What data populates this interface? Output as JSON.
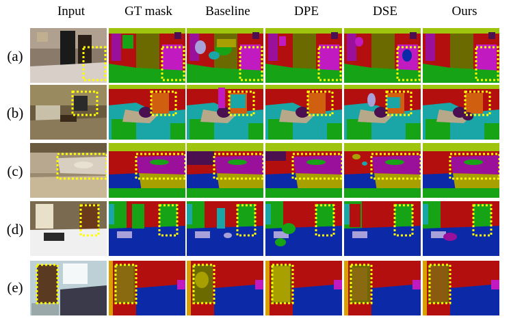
{
  "column_headers": [
    "Input",
    "GT mask",
    "Baseline",
    "DPE",
    "DSE",
    "Ours"
  ],
  "row_labels": [
    "(a)",
    "(b)",
    "(c)",
    "(d)",
    "(e)"
  ],
  "colors": {
    "red": "#b40f0f",
    "lime": "#9ec40e",
    "green": "#16a416",
    "olive": "#6a6a00",
    "olive_light": "#a8a000",
    "purple": "#9a109a",
    "magenta": "#c01ac0",
    "blue": "#0c2aa8",
    "navy": "#10207a",
    "teal": "#1aa6a6",
    "orange": "#d06010",
    "tan": "#b8a88a",
    "lavender": "#a8a0d8",
    "darkpurple": "#4a1050",
    "gold": "#d8a000",
    "highlight": "#ffff00"
  }
}
